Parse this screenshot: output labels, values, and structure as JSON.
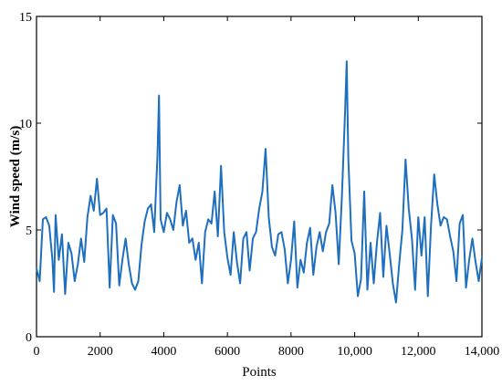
{
  "chart_data": {
    "type": "line",
    "title": "",
    "xlabel": "Points",
    "ylabel": "Wind speed (m/s)",
    "xlim": [
      0,
      14000
    ],
    "ylim": [
      0,
      15
    ],
    "x_ticks": [
      0,
      2000,
      4000,
      6000,
      8000,
      10000,
      12000,
      14000
    ],
    "x_tick_labels": [
      "0",
      "2000",
      "4000",
      "6000",
      "8000",
      "10,000",
      "12,000",
      "14,000"
    ],
    "y_ticks": [
      0,
      5,
      10,
      15
    ],
    "y_tick_labels": [
      "0",
      "5",
      "10",
      "15"
    ],
    "grid": false,
    "legend": "none",
    "line_color": "#1f6fbf",
    "series": [
      {
        "x": [
          0,
          100,
          200,
          300,
          400,
          500,
          550,
          600,
          700,
          800,
          900,
          1000,
          1100,
          1200,
          1300,
          1400,
          1500,
          1600,
          1700,
          1800,
          1900,
          2000,
          2100,
          2200,
          2300,
          2400,
          2500,
          2600,
          2700,
          2800,
          2900,
          3000,
          3100,
          3200,
          3300,
          3400,
          3500,
          3600,
          3700,
          3800,
          3850,
          3900,
          4000,
          4100,
          4200,
          4300,
          4400,
          4500,
          4600,
          4700,
          4800,
          4900,
          5000,
          5100,
          5200,
          5300,
          5400,
          5500,
          5600,
          5700,
          5800,
          5900,
          6000,
          6100,
          6200,
          6300,
          6400,
          6500,
          6600,
          6700,
          6800,
          6900,
          7000,
          7100,
          7200,
          7300,
          7400,
          7500,
          7600,
          7700,
          7800,
          7900,
          8000,
          8100,
          8200,
          8300,
          8400,
          8500,
          8600,
          8700,
          8800,
          8900,
          9000,
          9100,
          9200,
          9300,
          9400,
          9500,
          9600,
          9700,
          9750,
          9800,
          9900,
          10000,
          10100,
          10200,
          10300,
          10400,
          10500,
          10600,
          10700,
          10800,
          10900,
          11000,
          11100,
          11200,
          11300,
          11400,
          11500,
          11600,
          11700,
          11800,
          11900,
          12000,
          12100,
          12200,
          12300,
          12400,
          12500,
          12600,
          12700,
          12800,
          12900,
          13000,
          13100,
          13200,
          13300,
          13400,
          13500,
          13600,
          13700,
          13800,
          13900,
          14000
        ],
        "values": [
          3.2,
          2.6,
          5.5,
          5.6,
          5.2,
          3.6,
          2.1,
          5.7,
          3.6,
          4.8,
          2.0,
          4.4,
          3.9,
          2.6,
          3.4,
          4.6,
          3.5,
          5.6,
          6.6,
          5.9,
          7.4,
          5.7,
          5.8,
          6.0,
          2.3,
          5.7,
          5.3,
          2.4,
          3.6,
          4.6,
          3.4,
          2.5,
          2.2,
          2.6,
          4.3,
          5.4,
          6.0,
          6.2,
          4.9,
          8.4,
          11.3,
          5.5,
          4.9,
          5.8,
          5.5,
          5.0,
          6.3,
          7.1,
          5.2,
          5.9,
          4.4,
          4.6,
          3.6,
          4.4,
          2.5,
          4.9,
          5.5,
          5.3,
          6.8,
          4.7,
          8.0,
          4.9,
          3.7,
          2.9,
          4.9,
          3.5,
          2.5,
          4.6,
          4.9,
          3.1,
          4.6,
          4.9,
          6.0,
          6.8,
          8.8,
          5.6,
          4.2,
          3.8,
          4.8,
          4.9,
          4.1,
          2.5,
          3.6,
          5.4,
          2.3,
          3.6,
          3.0,
          4.4,
          5.1,
          2.9,
          4.2,
          4.9,
          4.0,
          4.9,
          5.3,
          7.1,
          5.8,
          3.4,
          6.6,
          10.6,
          12.9,
          8.4,
          4.5,
          3.9,
          1.9,
          2.7,
          6.8,
          2.2,
          4.4,
          2.5,
          4.4,
          5.8,
          2.8,
          5.2,
          3.9,
          2.5,
          1.6,
          3.4,
          5.0,
          8.3,
          6.0,
          4.6,
          2.2,
          5.6,
          3.8,
          5.6,
          1.9,
          5.2,
          7.6,
          6.2,
          5.2,
          5.6,
          5.5,
          4.7,
          4.0,
          2.6,
          5.3,
          5.7,
          2.3,
          3.6,
          4.6,
          3.5,
          2.6,
          3.7
        ]
      }
    ]
  }
}
